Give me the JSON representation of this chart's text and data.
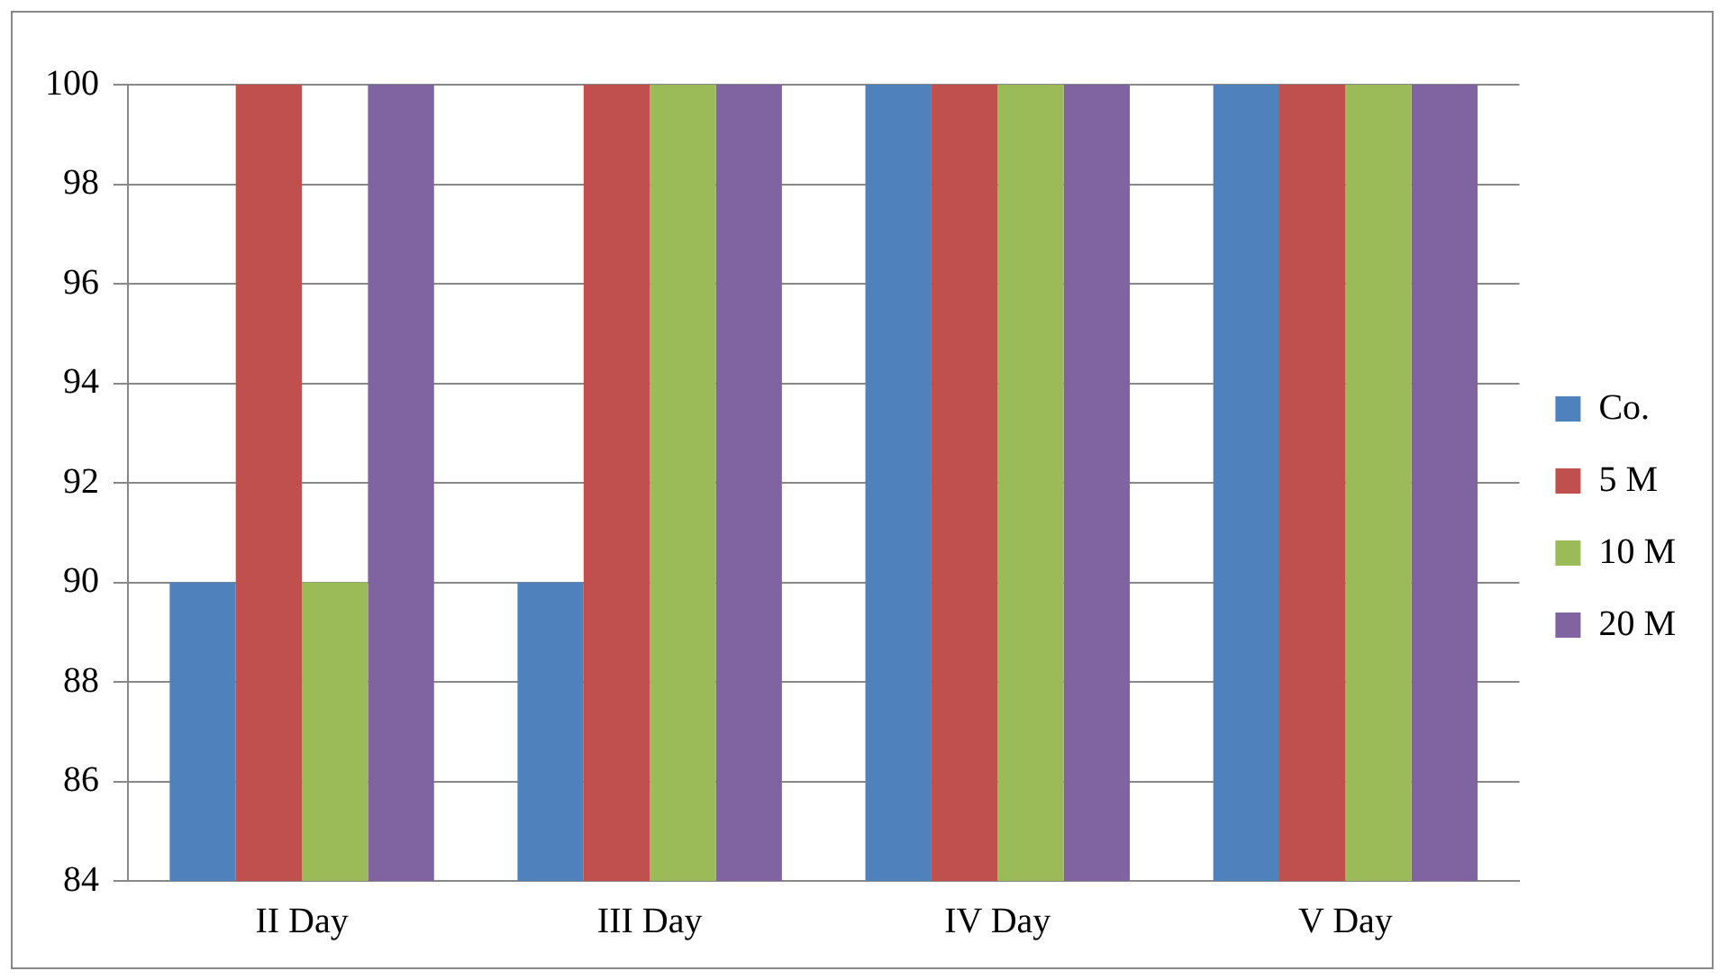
{
  "chart_data": {
    "type": "bar",
    "categories": [
      "II Day",
      "III Day",
      "IV Day",
      "V Day"
    ],
    "series": [
      {
        "name": "Co.",
        "color": "#4f81bd",
        "values": [
          90,
          90,
          100,
          100
        ]
      },
      {
        "name": "5 M",
        "color": "#c0504d",
        "values": [
          100,
          100,
          100,
          100
        ]
      },
      {
        "name": "10 M",
        "color": "#9bbb59",
        "values": [
          90,
          100,
          100,
          100
        ]
      },
      {
        "name": "20 M",
        "color": "#8064a2",
        "values": [
          100,
          100,
          100,
          100
        ]
      }
    ],
    "ylim": [
      84,
      100
    ],
    "yticks": [
      84,
      86,
      88,
      90,
      92,
      94,
      96,
      98,
      100
    ],
    "grid": "y",
    "legend": "right"
  }
}
